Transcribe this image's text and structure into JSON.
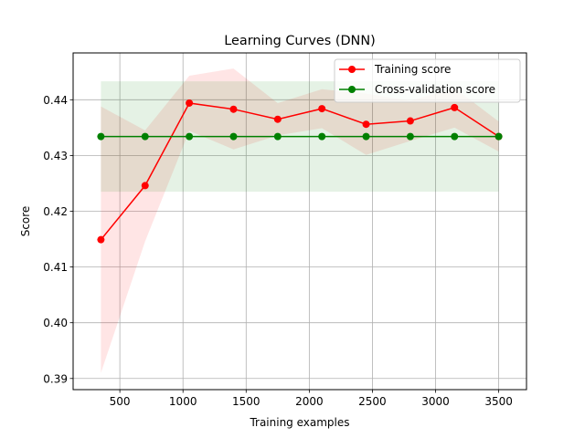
{
  "chart_data": {
    "type": "line",
    "title": "Learning Curves (DNN)",
    "xlabel": "Training examples",
    "ylabel": "Score",
    "xlim": [
      130,
      3720
    ],
    "ylim": [
      0.388,
      0.4484
    ],
    "xticks": [
      500,
      1000,
      1500,
      2000,
      2500,
      3000,
      3500
    ],
    "yticks": [
      0.39,
      0.4,
      0.41,
      0.42,
      0.43,
      0.44
    ],
    "ytick_labels": [
      "0.39",
      "0.40",
      "0.41",
      "0.42",
      "0.43",
      "0.44"
    ],
    "grid": true,
    "legend_position": "top-right",
    "x": [
      350,
      700,
      1050,
      1400,
      1750,
      2100,
      2450,
      2800,
      3150,
      3500
    ],
    "series": [
      {
        "name": "Training score",
        "color": "#ff0000",
        "band_color": "#ff0000",
        "values": [
          0.4149,
          0.4246,
          0.4394,
          0.4383,
          0.4365,
          0.4384,
          0.4356,
          0.4362,
          0.4386,
          0.4334
        ],
        "upper": [
          0.4388,
          0.4345,
          0.4443,
          0.4456,
          0.4394,
          0.4419,
          0.4411,
          0.4398,
          0.4421,
          0.4361
        ],
        "lower": [
          0.391,
          0.4146,
          0.4344,
          0.4311,
          0.4336,
          0.4349,
          0.4301,
          0.4326,
          0.435,
          0.4307
        ]
      },
      {
        "name": "Cross-validation score",
        "color": "#008000",
        "band_color": "#008000",
        "values": [
          0.4334,
          0.4334,
          0.4334,
          0.4334,
          0.4334,
          0.4334,
          0.4334,
          0.4334,
          0.4334,
          0.4334
        ],
        "upper": [
          0.4433,
          0.4433,
          0.4433,
          0.4433,
          0.4433,
          0.4433,
          0.4433,
          0.4433,
          0.4433,
          0.4433
        ],
        "lower": [
          0.4235,
          0.4235,
          0.4235,
          0.4235,
          0.4235,
          0.4235,
          0.4235,
          0.4235,
          0.4235,
          0.4235
        ]
      }
    ]
  }
}
